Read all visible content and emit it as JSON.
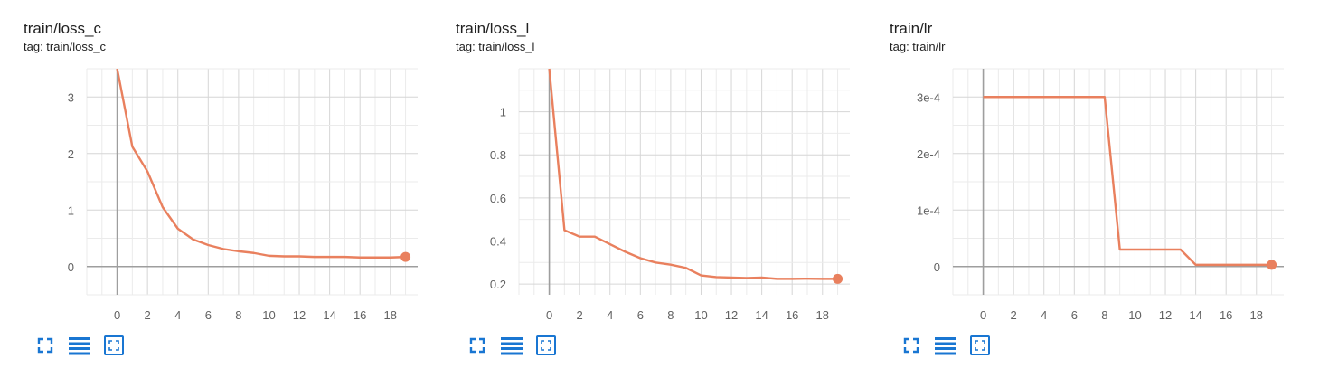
{
  "charts": [
    {
      "title": "train/loss_c",
      "tag": "tag: train/loss_c",
      "toolbar": [
        "fullscreen-icon",
        "data-table-icon",
        "fit-domain-icon"
      ]
    },
    {
      "title": "train/loss_l",
      "tag": "tag: train/loss_l",
      "toolbar": [
        "fullscreen-icon",
        "data-table-icon",
        "fit-domain-icon"
      ]
    },
    {
      "title": "train/lr",
      "tag": "tag: train/lr",
      "toolbar": [
        "fullscreen-icon",
        "data-table-icon",
        "fit-domain-icon"
      ]
    }
  ],
  "colors": {
    "series": "#e9805e",
    "accent": "#1976d2",
    "grid": "#dddddd",
    "axis": "#9e9e9e"
  },
  "chart_data": [
    {
      "type": "line",
      "title": "train/loss_c",
      "xlabel": "",
      "ylabel": "",
      "xlim": [
        -2,
        19.8
      ],
      "ylim": [
        -0.5,
        3.5
      ],
      "xticks": [
        0,
        2,
        4,
        6,
        8,
        10,
        12,
        14,
        16,
        18
      ],
      "yticks": [
        0,
        1,
        2,
        3
      ],
      "ytick_labels": [
        "0",
        "1",
        "2",
        "3"
      ],
      "grid": true,
      "series": [
        {
          "x": [
            0,
            1,
            2,
            3,
            4,
            5,
            6,
            7,
            8,
            9,
            10,
            11,
            12,
            13,
            14,
            15,
            16,
            17,
            18,
            19
          ],
          "values": [
            3.5,
            2.12,
            1.68,
            1.05,
            0.67,
            0.48,
            0.38,
            0.31,
            0.27,
            0.24,
            0.19,
            0.18,
            0.18,
            0.17,
            0.17,
            0.17,
            0.16,
            0.16,
            0.16,
            0.17
          ]
        }
      ]
    },
    {
      "type": "line",
      "title": "train/loss_l",
      "xlabel": "",
      "ylabel": "",
      "xlim": [
        -2,
        19.8
      ],
      "ylim": [
        0.15,
        1.2
      ],
      "xticks": [
        0,
        2,
        4,
        6,
        8,
        10,
        12,
        14,
        16,
        18
      ],
      "yticks": [
        0.2,
        0.4,
        0.6,
        0.8,
        1.0
      ],
      "ytick_labels": [
        "0.2",
        "0.4",
        "0.6",
        "0.8",
        "1"
      ],
      "grid": true,
      "series": [
        {
          "x": [
            0,
            1,
            2,
            3,
            4,
            5,
            6,
            7,
            8,
            9,
            10,
            11,
            12,
            13,
            14,
            15,
            16,
            17,
            18,
            19
          ],
          "values": [
            1.2,
            0.45,
            0.42,
            0.42,
            0.385,
            0.35,
            0.32,
            0.3,
            0.29,
            0.275,
            0.24,
            0.232,
            0.23,
            0.228,
            0.23,
            0.224,
            0.224,
            0.225,
            0.224,
            0.224
          ]
        }
      ]
    },
    {
      "type": "line",
      "title": "train/lr",
      "xlabel": "",
      "ylabel": "",
      "xlim": [
        -2,
        19.8
      ],
      "ylim": [
        -5e-05,
        0.00035
      ],
      "xticks": [
        0,
        2,
        4,
        6,
        8,
        10,
        12,
        14,
        16,
        18
      ],
      "yticks": [
        0,
        0.0001,
        0.0002,
        0.0003
      ],
      "ytick_labels": [
        "0",
        "1e-4",
        "2e-4",
        "3e-4"
      ],
      "grid": true,
      "series": [
        {
          "x": [
            0,
            1,
            2,
            3,
            4,
            5,
            6,
            7,
            8,
            9,
            10,
            11,
            12,
            13,
            14,
            15,
            16,
            17,
            18,
            19
          ],
          "values": [
            0.0003,
            0.0003,
            0.0003,
            0.0003,
            0.0003,
            0.0003,
            0.0003,
            0.0003,
            0.0003,
            3e-05,
            3e-05,
            3e-05,
            3e-05,
            3e-05,
            3e-06,
            3e-06,
            3e-06,
            3e-06,
            3e-06,
            3e-06
          ]
        }
      ]
    }
  ]
}
